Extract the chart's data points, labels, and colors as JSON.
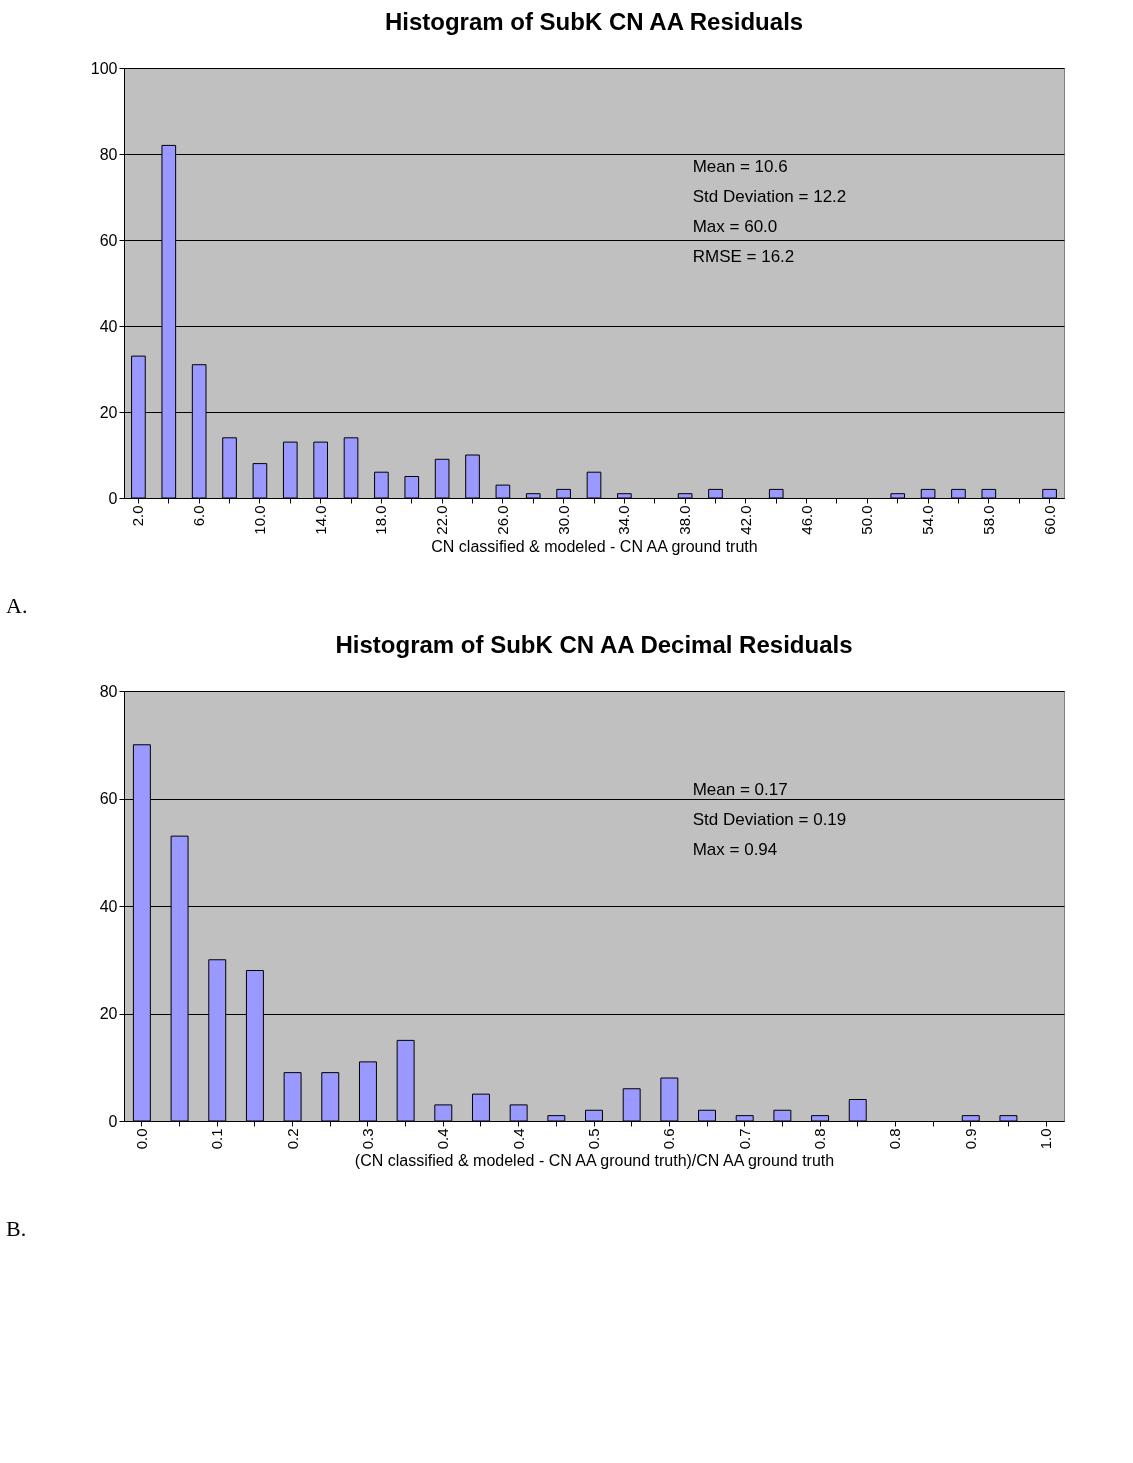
{
  "chart_data": [
    {
      "type": "bar",
      "title": "Histogram of SubK CN AA Residuals",
      "xlabel": "CN classified & modeled - CN AA ground truth",
      "categories": [
        "2.0",
        null,
        "6.0",
        null,
        "10.0",
        null,
        "14.0",
        null,
        "18.0",
        null,
        "22.0",
        null,
        "26.0",
        null,
        "30.0",
        null,
        "34.0",
        null,
        "38.0",
        null,
        "42.0",
        null,
        "46.0",
        null,
        "50.0",
        null,
        "54.0",
        null,
        "58.0",
        null,
        "60.0"
      ],
      "values": [
        33,
        82,
        31,
        14,
        8,
        13,
        13,
        14,
        6,
        5,
        9,
        10,
        3,
        1,
        2,
        6,
        1,
        0,
        1,
        2,
        0,
        2,
        0,
        0,
        0,
        1,
        2,
        2,
        2,
        0,
        2
      ],
      "color": "#9999ff",
      "ylim": [
        0,
        100
      ],
      "yticks": [
        0,
        20,
        40,
        60,
        80,
        100
      ],
      "grid": "y",
      "annotations": [
        "Mean = 10.6",
        "Std Deviation = 12.2",
        "Max = 60.0",
        "RMSE = 16.2",
        "A."
      ]
    },
    {
      "type": "bar",
      "title": "Histogram of SubK CN AA Decimal Residuals",
      "xlabel": "(CN classified & modeled - CN AA ground truth)/CN AA ground truth",
      "categories": [
        "0.0",
        null,
        "0.1",
        null,
        "0.2",
        null,
        "0.3",
        null,
        "0.4",
        null,
        "0.4",
        null,
        "0.5",
        null,
        "0.6",
        null,
        "0.7",
        null,
        "0.8",
        null,
        "0.8",
        null,
        "0.9",
        null,
        "1.0"
      ],
      "values": [
        70,
        53,
        30,
        28,
        9,
        9,
        11,
        15,
        3,
        5,
        3,
        1,
        2,
        6,
        8,
        2,
        1,
        2,
        1,
        4,
        0,
        0,
        1,
        1,
        0
      ],
      "color": "#9999ff",
      "ylim": [
        0,
        80
      ],
      "yticks": [
        0,
        20,
        40,
        60,
        80
      ],
      "grid": "y",
      "annotations": [
        "Mean = 0.17",
        "Std Deviation = 0.19",
        "Max = 0.94",
        "B."
      ]
    }
  ]
}
